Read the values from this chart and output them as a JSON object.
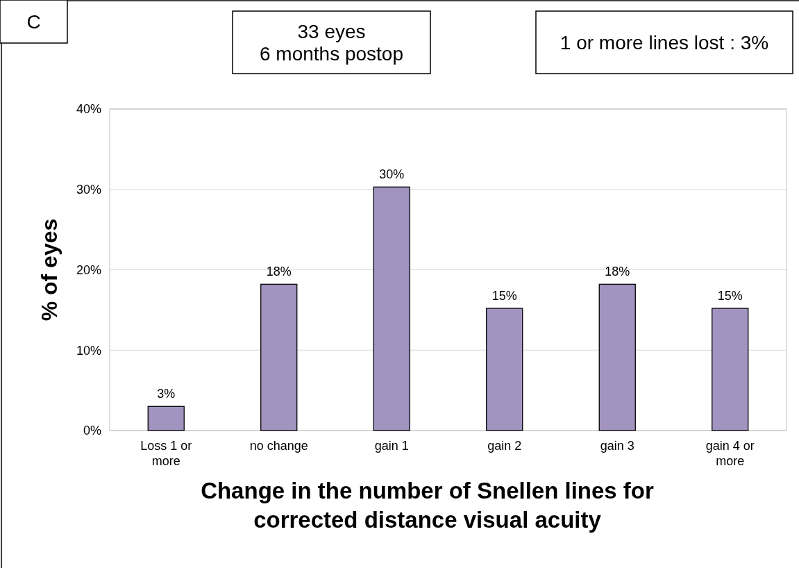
{
  "chart_data": {
    "type": "bar",
    "categories": [
      "Loss 1 or more",
      "no change",
      "gain 1",
      "gain 2",
      "gain 3",
      "gain 4 or more"
    ],
    "values": [
      3,
      18.2,
      30.3,
      15.2,
      18.2,
      15.2
    ],
    "value_labels": [
      "3%",
      "18%",
      "30%",
      "15%",
      "18%",
      "15%"
    ],
    "color": "#a294c0",
    "ylim": [
      0,
      40
    ],
    "yticks": [
      {
        "value": 0,
        "label": "0%"
      },
      {
        "value": 10,
        "label": "10%"
      },
      {
        "value": 20,
        "label": "20%"
      },
      {
        "value": 30,
        "label": "30%"
      },
      {
        "value": 40,
        "label": "40%"
      }
    ],
    "grid": "y",
    "xlabel": "Change in the number of Snellen lines for corrected distance visual acuity",
    "ylabel": "% of eyes",
    "annotations": [
      "C",
      "33 eyes\n6 months postop",
      "1 or more lines lost : 3%"
    ]
  }
}
